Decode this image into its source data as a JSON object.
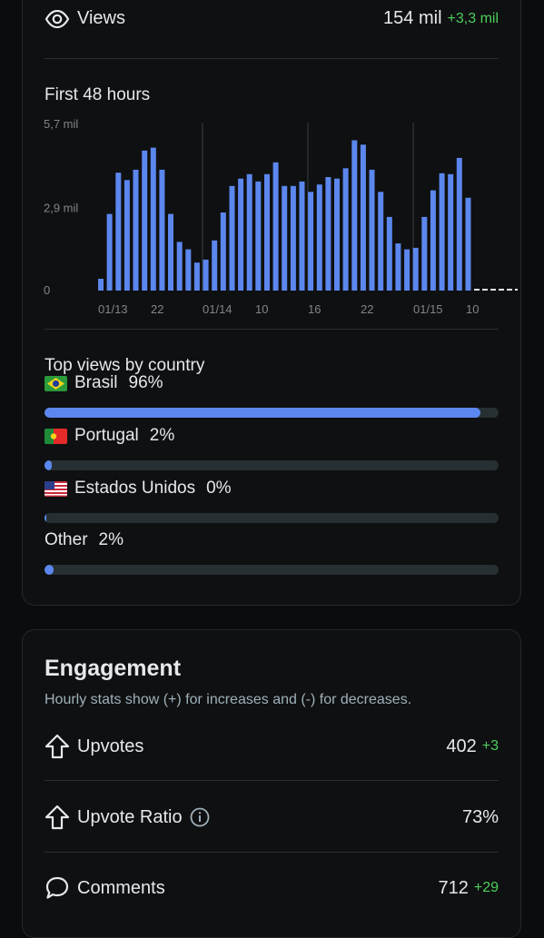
{
  "views": {
    "label": "Views",
    "value": "154 mil",
    "delta": "+3,3 mil"
  },
  "chart": {
    "title": "First 48 hours",
    "y_ticks": [
      "5,7 mil",
      "2,9 mil",
      "0"
    ],
    "x_ticks": [
      "01/13",
      "22",
      "01/14",
      "10",
      "16",
      "22",
      "01/15",
      "10"
    ]
  },
  "chart_data": {
    "type": "bar",
    "title": "First 48 hours",
    "xlabel": "",
    "ylabel": "",
    "ylim": [
      0,
      5.7
    ],
    "unit": "mil",
    "series": [
      {
        "values": [
          0.4,
          2.6,
          4.0,
          3.75,
          4.1,
          4.75,
          4.85,
          4.1,
          2.6,
          1.65,
          1.4,
          0.95,
          1.05,
          1.7,
          2.65,
          3.55,
          3.8,
          3.95,
          3.7,
          3.95,
          4.35,
          3.55,
          3.55,
          3.7,
          3.35,
          3.6,
          3.85,
          3.8,
          4.15,
          5.1,
          4.95,
          4.1,
          3.35,
          2.5,
          1.6,
          1.4,
          1.45,
          2.5,
          3.4,
          3.98,
          3.95,
          4.5,
          3.15
        ]
      }
    ],
    "grid": true,
    "x_tick_labels": [
      "01/13",
      "22",
      "01/14",
      "10",
      "16",
      "22",
      "01/15",
      "10"
    ]
  },
  "countries": {
    "title": "Top views by country",
    "items": [
      {
        "flag": "brazil-flag",
        "name": "Brasil",
        "pct_label": "96%",
        "fraction": 0.96
      },
      {
        "flag": "portugal-flag",
        "name": "Portugal",
        "pct_label": "2%",
        "fraction": 0.015
      },
      {
        "flag": "usa-flag",
        "name": "Estados Unidos",
        "pct_label": "0%",
        "fraction": 0.004
      },
      {
        "flag": "",
        "name": "Other",
        "pct_label": "2%",
        "fraction": 0.02
      }
    ]
  },
  "engagement": {
    "title": "Engagement",
    "subtitle": "Hourly stats show (+) for increases and (-) for decreases.",
    "upvotes": {
      "label": "Upvotes",
      "value": "402",
      "delta": "+3"
    },
    "ratio": {
      "label": "Upvote Ratio",
      "value": "73%"
    },
    "comments": {
      "label": "Comments",
      "value": "712",
      "delta": "+29"
    }
  },
  "colors": {
    "accent": "#5b87ee",
    "positive": "#4ccf5c",
    "track": "#263033"
  }
}
